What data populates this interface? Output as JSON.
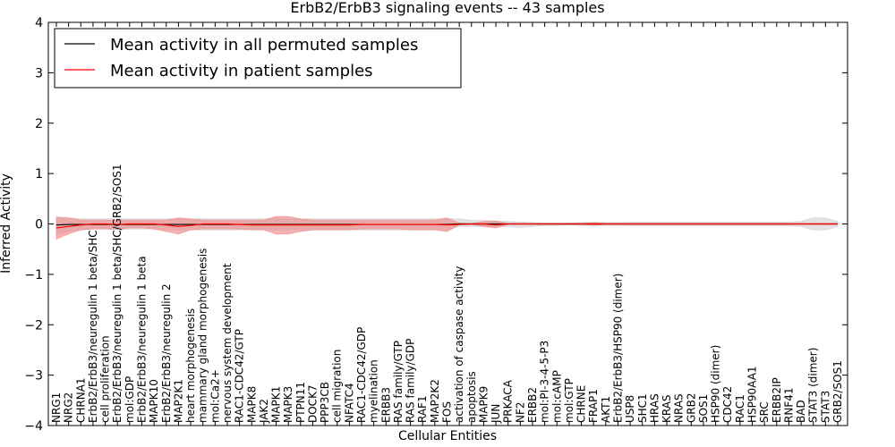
{
  "chart_data": {
    "type": "line",
    "title": "ErbB2/ErbB3 signaling events -- 43 samples",
    "xlabel": "Cellular Entities",
    "ylabel": "Inferred Activity",
    "ylim": [
      -4,
      4
    ],
    "yticks": [
      "−4",
      "−3",
      "−2",
      "−1",
      "0",
      "1",
      "2",
      "3",
      "4"
    ],
    "grid": false,
    "legend_position": "top-left",
    "colors": {
      "permuted": "#000000",
      "patient": "#ff0000",
      "patient_band": "#f08080",
      "permuted_band": "#c8c8c8"
    },
    "categories": [
      "NRG1",
      "NRG2",
      "CHRNA1",
      "ErbB2/ErbB3/neuregulin 1 beta/SHC",
      "cell proliferation",
      "ErbB2/ErbB3/neuregulin 1 beta/SHC/GRB2/SOS1",
      "mol:GDP",
      "ErbB2/ErbB3/neuregulin 1 beta",
      "MAPK10",
      "ErbB2/ErbB3/neuregulin 2",
      "MAP2K1",
      "heart morphogenesis",
      "mammary gland morphogenesis",
      "mol:Ca2+",
      "nervous system development",
      "RAC1-CDC42/GTP",
      "MAPK8",
      "JAK2",
      "MAPK1",
      "MAPK3",
      "PTPN11",
      "DOCK7",
      "PPP3CB",
      "cell migration",
      "NFATC4",
      "RAC1-CDC42/GDP",
      "myelination",
      "ERBB3",
      "RAS family/GTP",
      "RAS family/GDP",
      "RAF1",
      "MAP2K2",
      "FOS",
      "activation of caspase activity",
      "apoptosis",
      "MAPK9",
      "JUN",
      "PRKACA",
      "NF2",
      "ERBB2",
      "mol:PI-3-4-5-P3",
      "mol:cAMP",
      "mol:GTP",
      "CHRNE",
      "FRAP1",
      "AKT1",
      "ErbB2/ErbB3/HSP90 (dimer)",
      "USP8",
      "SHC1",
      "HRAS",
      "KRAS",
      "NRAS",
      "GRB2",
      "SOS1",
      "HSP90 (dimer)",
      "CDC42",
      "RAC1",
      "HSP90AA1",
      "SRC",
      "ERBB2IP",
      "RNF41",
      "BAD",
      "STAT3 (dimer)",
      "STAT3",
      "GRB2/SOS1"
    ],
    "series": [
      {
        "name": "Mean activity in all permuted samples",
        "values": [
          -0.02,
          -0.01,
          -0.01,
          -0.01,
          -0.01,
          -0.01,
          -0.01,
          -0.01,
          -0.01,
          -0.01,
          -0.01,
          -0.01,
          -0.01,
          -0.01,
          -0.01,
          -0.01,
          -0.01,
          -0.01,
          -0.01,
          -0.01,
          -0.01,
          -0.01,
          -0.01,
          -0.01,
          -0.01,
          -0.01,
          -0.01,
          -0.01,
          -0.01,
          -0.01,
          -0.01,
          -0.01,
          -0.01,
          0.0,
          0.0,
          0.0,
          0.0,
          0.0,
          0.0,
          0.0,
          0.0,
          0.0,
          0.0,
          0.0,
          0.0,
          0.0,
          0.0,
          0.0,
          0.0,
          0.0,
          0.0,
          0.0,
          0.0,
          0.0,
          0.0,
          0.0,
          0.0,
          0.0,
          0.0,
          0.0,
          0.0,
          0.0,
          0.0,
          0.0,
          0.0
        ],
        "lower": [
          -0.2,
          -0.15,
          -0.12,
          -0.1,
          -0.1,
          -0.12,
          -0.1,
          -0.1,
          -0.1,
          -0.12,
          -0.12,
          -0.12,
          -0.12,
          -0.12,
          -0.12,
          -0.12,
          -0.12,
          -0.12,
          -0.12,
          -0.12,
          -0.12,
          -0.12,
          -0.12,
          -0.12,
          -0.12,
          -0.12,
          -0.12,
          -0.12,
          -0.12,
          -0.12,
          -0.12,
          -0.12,
          -0.12,
          -0.05,
          -0.05,
          -0.05,
          -0.05,
          -0.05,
          -0.07,
          -0.05,
          -0.03,
          -0.03,
          -0.02,
          -0.03,
          -0.03,
          -0.03,
          -0.03,
          -0.04,
          -0.04,
          -0.04,
          -0.04,
          -0.04,
          -0.04,
          -0.04,
          -0.04,
          -0.04,
          -0.04,
          -0.04,
          -0.04,
          -0.04,
          -0.04,
          -0.05,
          -0.12,
          -0.12,
          -0.05
        ],
        "upper": [
          0.15,
          0.12,
          0.1,
          0.1,
          0.1,
          0.1,
          0.1,
          0.1,
          0.1,
          0.1,
          0.1,
          0.1,
          0.1,
          0.1,
          0.1,
          0.1,
          0.1,
          0.1,
          0.1,
          0.1,
          0.1,
          0.1,
          0.1,
          0.1,
          0.1,
          0.1,
          0.1,
          0.1,
          0.1,
          0.1,
          0.1,
          0.1,
          0.1,
          0.1,
          0.07,
          0.07,
          0.06,
          0.05,
          0.04,
          0.03,
          0.02,
          0.02,
          0.02,
          0.03,
          0.03,
          0.03,
          0.03,
          0.04,
          0.04,
          0.04,
          0.04,
          0.04,
          0.04,
          0.04,
          0.04,
          0.04,
          0.04,
          0.04,
          0.04,
          0.04,
          0.04,
          0.05,
          0.12,
          0.12,
          0.05
        ]
      },
      {
        "name": "Mean activity in patient samples",
        "values": [
          -0.08,
          -0.05,
          -0.02,
          0.0,
          0.0,
          -0.01,
          0.0,
          0.0,
          0.0,
          -0.02,
          -0.05,
          -0.03,
          0.0,
          0.0,
          0.0,
          -0.01,
          -0.02,
          -0.02,
          -0.02,
          -0.02,
          -0.02,
          -0.02,
          -0.02,
          -0.02,
          -0.02,
          -0.01,
          -0.01,
          -0.01,
          -0.01,
          -0.01,
          -0.01,
          -0.01,
          -0.02,
          -0.01,
          0.0,
          0.0,
          -0.02,
          0.0,
          0.0,
          0.0,
          0.0,
          0.0,
          0.0,
          0.0,
          0.0,
          0.0,
          0.0,
          0.0,
          0.0,
          0.0,
          0.0,
          0.0,
          0.0,
          0.0,
          0.0,
          0.0,
          0.0,
          0.0,
          0.0,
          0.0,
          0.0,
          0.0,
          0.0,
          0.0,
          0.0
        ],
        "lower": [
          -0.3,
          -0.2,
          -0.12,
          -0.1,
          -0.1,
          -0.1,
          -0.08,
          -0.08,
          -0.1,
          -0.15,
          -0.2,
          -0.12,
          -0.1,
          -0.1,
          -0.1,
          -0.1,
          -0.12,
          -0.12,
          -0.2,
          -0.2,
          -0.15,
          -0.12,
          -0.12,
          -0.12,
          -0.12,
          -0.1,
          -0.1,
          -0.1,
          -0.1,
          -0.12,
          -0.12,
          -0.12,
          -0.15,
          -0.02,
          -0.01,
          -0.05,
          -0.08,
          -0.01,
          -0.01,
          -0.01,
          -0.01,
          -0.01,
          -0.01,
          -0.01,
          -0.03,
          -0.01,
          -0.01,
          -0.01,
          -0.01,
          -0.01,
          -0.01,
          -0.01,
          -0.01,
          -0.01,
          -0.01,
          -0.01,
          -0.01,
          -0.01,
          -0.01,
          -0.01,
          -0.01,
          -0.01,
          -0.01,
          -0.01,
          -0.01
        ],
        "upper": [
          0.12,
          0.12,
          0.08,
          0.08,
          0.08,
          0.08,
          0.08,
          0.08,
          0.08,
          0.08,
          0.12,
          0.1,
          0.08,
          0.08,
          0.08,
          0.08,
          0.08,
          0.08,
          0.15,
          0.15,
          0.1,
          0.08,
          0.08,
          0.08,
          0.08,
          0.08,
          0.08,
          0.08,
          0.08,
          0.08,
          0.08,
          0.08,
          0.12,
          0.02,
          0.01,
          0.05,
          0.06,
          0.01,
          0.01,
          0.01,
          0.01,
          0.01,
          0.01,
          0.01,
          0.03,
          0.01,
          0.01,
          0.01,
          0.01,
          0.01,
          0.01,
          0.01,
          0.01,
          0.01,
          0.01,
          0.01,
          0.01,
          0.01,
          0.01,
          0.01,
          0.01,
          0.01,
          0.01,
          0.01,
          0.01
        ]
      }
    ]
  }
}
